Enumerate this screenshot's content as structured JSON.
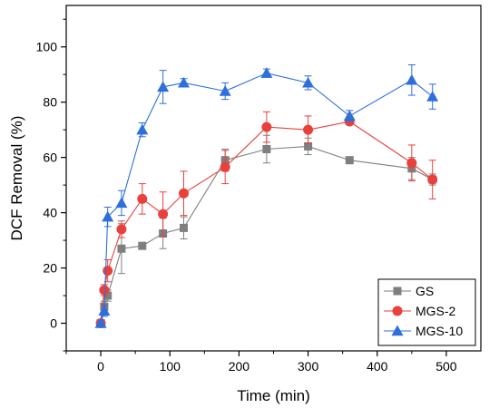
{
  "chart_data": {
    "type": "line",
    "xlabel": "Time (min)",
    "ylabel": "DCF Removal (%)",
    "xlim": [
      -50,
      550
    ],
    "ylim": [
      -10,
      115
    ],
    "xticks": [
      0,
      100,
      200,
      300,
      400,
      500
    ],
    "yticks": [
      0,
      20,
      40,
      60,
      80,
      100
    ],
    "grid": false,
    "legend_position": "bottom-right",
    "series": [
      {
        "name": "GS",
        "color": "#7f7f7f",
        "marker": "square",
        "x": [
          0,
          5,
          10,
          30,
          60,
          90,
          120,
          180,
          240,
          300,
          360,
          450,
          480
        ],
        "y": [
          0,
          6,
          10,
          27,
          28,
          32.5,
          34.5,
          59,
          63,
          64,
          59,
          56,
          52
        ],
        "err": [
          1,
          2,
          2,
          9,
          1,
          5.5,
          4,
          4,
          5,
          3,
          1,
          4,
          2
        ]
      },
      {
        "name": "MGS-2",
        "color": "#e8413c",
        "marker": "circle",
        "x": [
          0,
          5,
          10,
          30,
          60,
          90,
          120,
          180,
          240,
          300,
          360,
          450,
          480
        ],
        "y": [
          0,
          12,
          19,
          34,
          45,
          39.5,
          47,
          56.5,
          71,
          70,
          73,
          58,
          52
        ],
        "err": [
          1,
          2,
          4,
          3,
          5.5,
          8,
          8,
          6,
          5.5,
          5,
          1,
          6.5,
          7
        ]
      },
      {
        "name": "MGS-10",
        "color": "#2e6fdc",
        "marker": "triangle",
        "x": [
          0,
          5,
          10,
          30,
          60,
          90,
          120,
          180,
          240,
          300,
          360,
          450,
          480
        ],
        "y": [
          0,
          4.5,
          38.5,
          43.5,
          70,
          85.5,
          87,
          84,
          90.5,
          87,
          75,
          88,
          82
        ],
        "err": [
          1,
          2,
          3.5,
          4.5,
          2.5,
          6,
          1.5,
          3,
          1.5,
          2.5,
          2,
          5.5,
          4.5
        ]
      }
    ]
  }
}
